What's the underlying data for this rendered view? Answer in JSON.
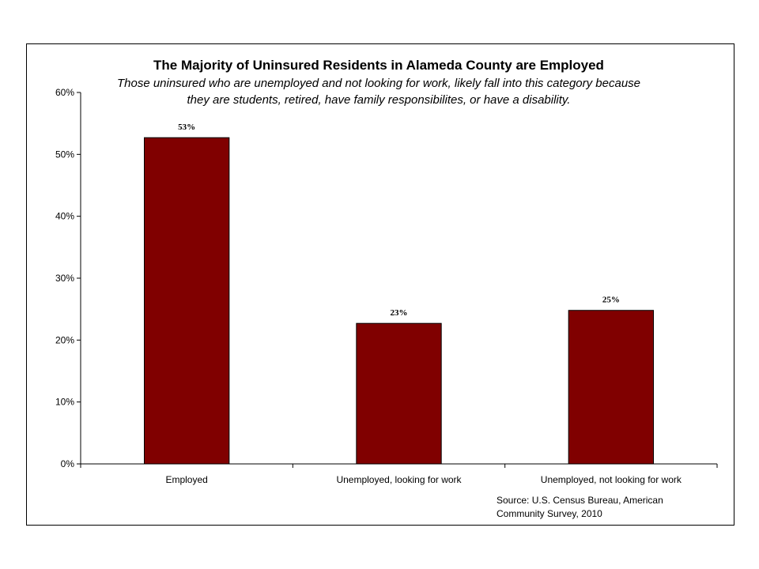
{
  "chart_data": {
    "type": "bar",
    "title": "The Majority of Uninsured Residents in Alameda County are Employed",
    "subtitle_lines": [
      "Those uninsured who are unemployed and not looking for work, likely fall into this category because",
      "they are students, retired, have family responsibilites, or have a disability."
    ],
    "categories": [
      "Employed",
      "Unemployed, looking for work",
      "Unemployed, not looking for work"
    ],
    "values": [
      52.7,
      22.7,
      24.8
    ],
    "data_labels": [
      "53%",
      "23%",
      "25%"
    ],
    "y_ticks": [
      "0%",
      "10%",
      "20%",
      "30%",
      "40%",
      "50%",
      "60%"
    ],
    "ylim": [
      0,
      60
    ],
    "grid": false,
    "bar_color": "#800000",
    "source_lines": [
      "Source: U.S. Census Bureau, American",
      "Community Survey, 2010"
    ]
  }
}
